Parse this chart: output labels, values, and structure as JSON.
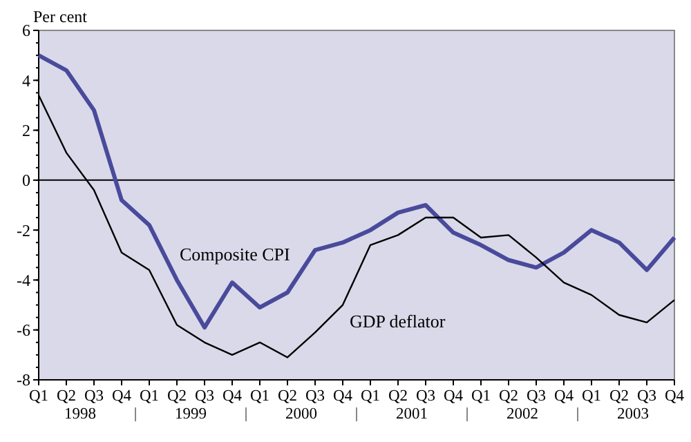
{
  "chart_data": {
    "type": "line",
    "ylabel": "Per cent",
    "categories": [
      "Q1",
      "Q2",
      "Q3",
      "Q4",
      "Q1",
      "Q2",
      "Q3",
      "Q4",
      "Q1",
      "Q2",
      "Q3",
      "Q4",
      "Q1",
      "Q2",
      "Q3",
      "Q4",
      "Q1",
      "Q2",
      "Q3",
      "Q4",
      "Q1",
      "Q2",
      "Q3",
      "Q4"
    ],
    "series": [
      {
        "name": "Composite CPI",
        "color": "#4a4a9c",
        "values": [
          5.0,
          4.4,
          2.8,
          -0.8,
          -1.8,
          -4.0,
          -5.9,
          -4.1,
          -5.1,
          -4.5,
          -2.8,
          -2.5,
          -2.0,
          -1.3,
          -1.0,
          -2.1,
          -2.6,
          -3.2,
          -3.5,
          -2.9,
          -2.0,
          -2.5,
          -3.6,
          -2.3
        ]
      },
      {
        "name": "GDP deflator",
        "color": "#000000",
        "values": [
          3.4,
          1.1,
          -0.4,
          -2.9,
          -3.6,
          -5.8,
          -6.5,
          -7.0,
          -6.5,
          -7.1,
          -6.1,
          -5.0,
          -2.6,
          -2.2,
          -1.5,
          -1.5,
          -2.3,
          -2.2,
          -3.1,
          -4.1,
          -4.6,
          -5.4,
          -5.7,
          -4.8
        ]
      }
    ],
    "annotations": [
      "1998",
      "1999",
      "2000",
      "2001",
      "2002",
      "2003"
    ],
    "ylim": [
      -8,
      6
    ],
    "yticks": [
      -8,
      -6,
      -4,
      -2,
      0,
      2,
      4,
      6
    ],
    "ref_lines": [
      {
        "axis": "y",
        "value": 0,
        "color": "#000000"
      }
    ],
    "grid": false,
    "marker": "none",
    "line_style": "solid"
  }
}
